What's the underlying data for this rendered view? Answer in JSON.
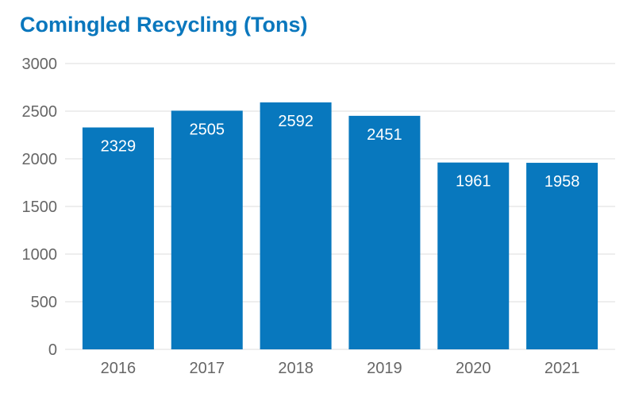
{
  "chart_data": {
    "type": "bar",
    "title": "Comingled Recycling (Tons)",
    "xlabel": "",
    "ylabel": "",
    "categories": [
      "2016",
      "2017",
      "2018",
      "2019",
      "2020",
      "2021"
    ],
    "values": [
      2329,
      2505,
      2592,
      2451,
      1961,
      1958
    ],
    "ylim": [
      0,
      3000
    ],
    "yticks": [
      0,
      500,
      1000,
      1500,
      2000,
      2500,
      3000
    ],
    "grid": true,
    "legend": "none",
    "bar_color": "#0878be",
    "data_labels": "inside-top"
  }
}
